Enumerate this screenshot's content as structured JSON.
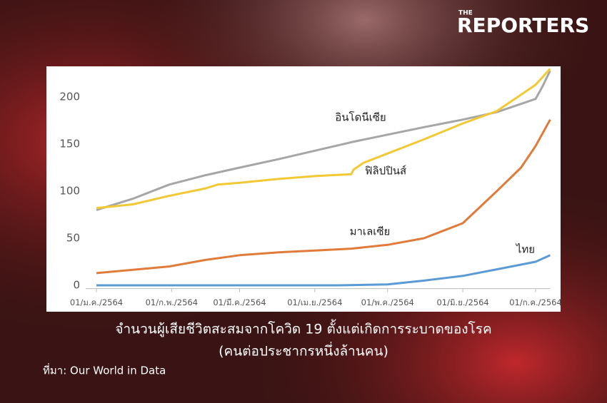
{
  "logo": {
    "small": "THE",
    "name": "REPORTERS"
  },
  "chart_data": {
    "type": "line",
    "title": "จำนวนผู้เสียชีวิตสะสมจากโควิด 19 ตั้งแต่เกิดการระบาดของโรค",
    "subtitle": "(คนต่อประชากรหนึ่งล้านคน)",
    "source": "ที่มา: Our World in Data",
    "xlim": [
      -3,
      190
    ],
    "xticks": [
      {
        "value": 0,
        "label": "01/ม.ค./2564"
      },
      {
        "value": 31,
        "label": "01/ก.พ./2564"
      },
      {
        "value": 59,
        "label": "01/มี.ค./2564"
      },
      {
        "value": 90,
        "label": "01/เม.ย./2564"
      },
      {
        "value": 120,
        "label": "01/พ.ค./2564"
      },
      {
        "value": 151,
        "label": "01/มิ.ย./2564"
      },
      {
        "value": 181,
        "label": "01/ก.ค./2564"
      }
    ],
    "ylim": [
      -8,
      232
    ],
    "yticks": [
      0,
      50,
      100,
      150,
      200
    ],
    "series": [
      {
        "name": "อินโดนีเซีย",
        "color": "#a6a6a6",
        "x": [
          0,
          15,
          30,
          45,
          59,
          75,
          90,
          105,
          120,
          135,
          151,
          165,
          181,
          184,
          187
        ],
        "values": [
          80,
          92,
          107,
          117,
          125,
          134,
          143,
          152,
          160,
          168,
          176,
          184,
          198,
          212,
          228
        ]
      },
      {
        "name": "ฟิลิปปินส์",
        "color": "#f2c935",
        "x": [
          0,
          15,
          30,
          45,
          50,
          59,
          75,
          90,
          105,
          106,
          110,
          120,
          135,
          151,
          165,
          181,
          187
        ],
        "values": [
          82,
          86,
          95,
          103,
          107,
          109,
          113,
          116,
          118,
          123,
          130,
          140,
          155,
          172,
          185,
          213,
          230
        ]
      },
      {
        "name": "มาเลเซีย",
        "color": "#e07b39",
        "x": [
          0,
          30,
          45,
          59,
          75,
          90,
          105,
          120,
          135,
          145,
          151,
          165,
          175,
          181,
          187
        ],
        "values": [
          13,
          20,
          27,
          32,
          35,
          37,
          39,
          43,
          50,
          60,
          66,
          100,
          125,
          148,
          176
        ]
      },
      {
        "name": "ไทย",
        "color": "#5b9bd5",
        "x": [
          0,
          100,
          120,
          135,
          151,
          165,
          181,
          187
        ],
        "values": [
          0,
          0,
          1,
          5,
          10,
          17,
          25,
          32
        ]
      }
    ]
  }
}
